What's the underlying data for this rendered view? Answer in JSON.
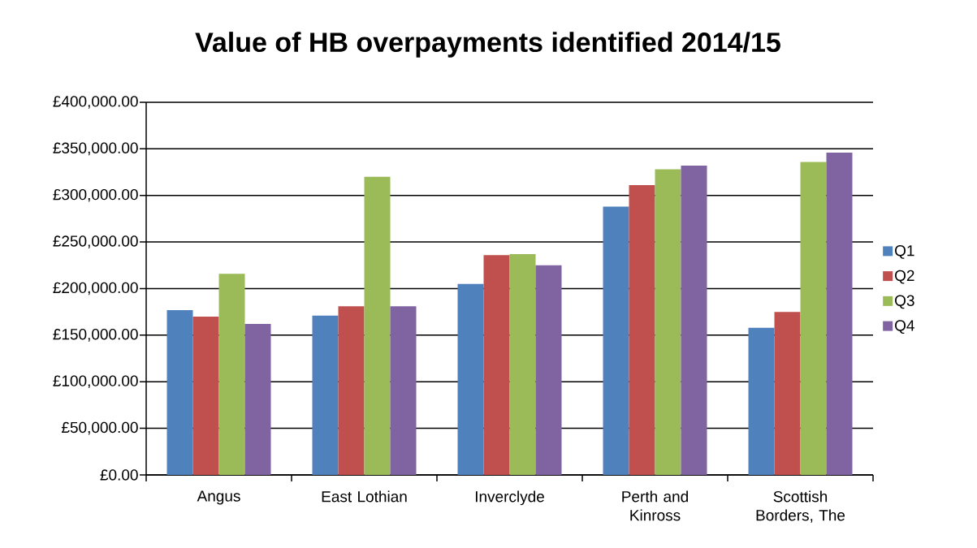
{
  "chart_data": {
    "type": "bar",
    "title": "Value of HB overpayments identified 2014/15",
    "categories": [
      "Angus",
      "East Lothian",
      "Inverclyde",
      "Perth and Kinross",
      "Scottish Borders, The"
    ],
    "series": [
      {
        "name": "Q1",
        "color": "#4f81bd",
        "values": [
          177000,
          171000,
          205000,
          288000,
          158000
        ]
      },
      {
        "name": "Q2",
        "color": "#c0504d",
        "values": [
          170000,
          181000,
          236000,
          311000,
          175000
        ]
      },
      {
        "name": "Q3",
        "color": "#9bbb59",
        "values": [
          216000,
          320000,
          237000,
          328000,
          336000
        ]
      },
      {
        "name": "Q4",
        "color": "#8064a2",
        "values": [
          162000,
          181000,
          225000,
          332000,
          346000
        ]
      }
    ],
    "ylim": [
      0,
      400000
    ],
    "yticks": [
      {
        "value": 0,
        "label": "£0.00"
      },
      {
        "value": 50000,
        "label": "£50,000.00"
      },
      {
        "value": 100000,
        "label": "£100,000.00"
      },
      {
        "value": 150000,
        "label": "£150,000.00"
      },
      {
        "value": 200000,
        "label": "£200,000.00"
      },
      {
        "value": 250000,
        "label": "£250,000.00"
      },
      {
        "value": 300000,
        "label": "£300,000.00"
      },
      {
        "value": 350000,
        "label": "£350,000.00"
      },
      {
        "value": 400000,
        "label": "£400,000.00"
      }
    ],
    "grid": "y",
    "legend": "right"
  }
}
